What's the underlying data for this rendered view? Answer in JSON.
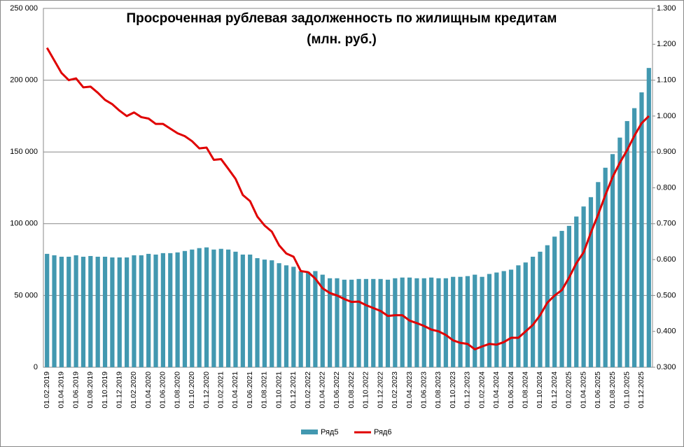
{
  "chart_data": {
    "type": "bar-line",
    "title": [
      "Просроченная рублевая задолженность по жилищным кредитам",
      "(млн. руб.)"
    ],
    "categories": [
      "01.02.2019",
      null,
      "01.04.2019",
      null,
      "01.06.2019",
      null,
      "01.08.2019",
      null,
      "01.10.2019",
      null,
      "01.12.2019",
      null,
      "01.02.2020",
      null,
      "01.04.2020",
      null,
      "01.06.2020",
      null,
      "01.08.2020",
      null,
      "01.10.2020",
      null,
      "01.12.2020",
      null,
      "01.02.2021",
      null,
      "01.04.2021",
      null,
      "01.06.2021",
      null,
      "01.08.2021",
      null,
      "01.10.2021",
      null,
      "01.12.2021",
      null,
      "01.02.2022",
      null,
      "01.04.2022",
      null,
      "01.06.2022",
      null,
      "01.08.2022",
      null,
      "01.10.2022",
      null,
      "01.12.2022",
      null,
      "01.02.2023",
      null,
      "01.04.2023",
      null,
      "01.06.2023",
      null,
      "01.08.2023",
      null,
      "01.10.2023",
      null,
      "01.12.2023",
      null,
      "01.02.2024",
      null,
      "01.04.2024",
      null,
      "01.06.2024",
      null,
      "01.08.2024",
      null,
      "01.10.2024",
      null,
      "01.12.2024",
      null,
      "01.02.2025",
      null,
      "01.04.2025",
      null,
      "01.06.2025",
      null,
      "01.08.2025",
      null,
      "01.10.2025",
      null,
      "01.12.2025",
      null
    ],
    "series": [
      {
        "name": "Ряд5",
        "type": "bar",
        "color": "#4298b0",
        "values": [
          79000,
          78000,
          77000,
          77000,
          78000,
          77000,
          77500,
          77000,
          77000,
          76500,
          76500,
          76500,
          78000,
          78000,
          79000,
          78500,
          79500,
          79500,
          80000,
          81000,
          82000,
          83000,
          83500,
          82000,
          82500,
          82000,
          80500,
          78500,
          78500,
          76000,
          75000,
          74500,
          72500,
          71000,
          70000,
          67000,
          66500,
          67000,
          64500,
          62000,
          62000,
          61000,
          61000,
          61500,
          61500,
          61500,
          61500,
          61000,
          62000,
          62500,
          62500,
          62000,
          62000,
          62500,
          62000,
          62000,
          63000,
          63000,
          63500,
          64500,
          63000,
          65000,
          66000,
          67000,
          68000,
          71000,
          73000,
          77000,
          80500,
          85000,
          91000,
          95000,
          98500,
          105000,
          112000,
          118500,
          129000,
          139000,
          148500,
          160000,
          171500,
          180500,
          191500,
          208500
        ]
      },
      {
        "name": "Ряд6",
        "type": "line",
        "axis": "y2",
        "color": "#e00000",
        "values": [
          1.19,
          1.155,
          1.12,
          1.1,
          1.105,
          1.08,
          1.082,
          1.065,
          1.045,
          1.033,
          1.015,
          1.0,
          1.01,
          0.997,
          0.993,
          0.978,
          0.978,
          0.965,
          0.952,
          0.944,
          0.93,
          0.91,
          0.912,
          0.878,
          0.88,
          0.853,
          0.825,
          0.78,
          0.763,
          0.72,
          0.695,
          0.678,
          0.64,
          0.617,
          0.608,
          0.568,
          0.565,
          0.547,
          0.52,
          0.507,
          0.5,
          0.49,
          0.482,
          0.483,
          0.473,
          0.465,
          0.457,
          0.443,
          0.445,
          0.445,
          0.43,
          0.423,
          0.415,
          0.405,
          0.4,
          0.39,
          0.375,
          0.368,
          0.365,
          0.35,
          0.358,
          0.365,
          0.363,
          0.37,
          0.382,
          0.382,
          0.4,
          0.418,
          0.445,
          0.48,
          0.5,
          0.515,
          0.55,
          0.59,
          0.62,
          0.675,
          0.725,
          0.78,
          0.83,
          0.87,
          0.905,
          0.945,
          0.98,
          1.0
        ]
      }
    ],
    "ylim": [
      0,
      250000
    ],
    "yticks": [
      0,
      {
        "value": 50000,
        "label": "50 000"
      },
      {
        "value": 100000,
        "label": "100 000"
      },
      {
        "value": 150000,
        "label": "150 000"
      },
      {
        "value": 200000,
        "label": "200 000"
      },
      {
        "value": 250000,
        "label": "250 000"
      }
    ],
    "y2lim": [
      0.3,
      1.3
    ],
    "y2ticks": [
      {
        "value": 0.3,
        "label": "0.300"
      },
      {
        "value": 0.4,
        "label": "0.400"
      },
      {
        "value": 0.5,
        "label": "0.500"
      },
      {
        "value": 0.6,
        "label": "0.600"
      },
      {
        "value": 0.7,
        "label": "0.700"
      },
      {
        "value": 0.8,
        "label": "0.800"
      },
      {
        "value": 0.9,
        "label": "0.900"
      },
      {
        "value": 1.0,
        "label": "1.000"
      },
      {
        "value": 1.1,
        "label": "1.100"
      },
      {
        "value": 1.2,
        "label": "1.200"
      },
      {
        "value": 1.3,
        "label": "1.300"
      }
    ],
    "grid": true,
    "legend": "bottom"
  }
}
